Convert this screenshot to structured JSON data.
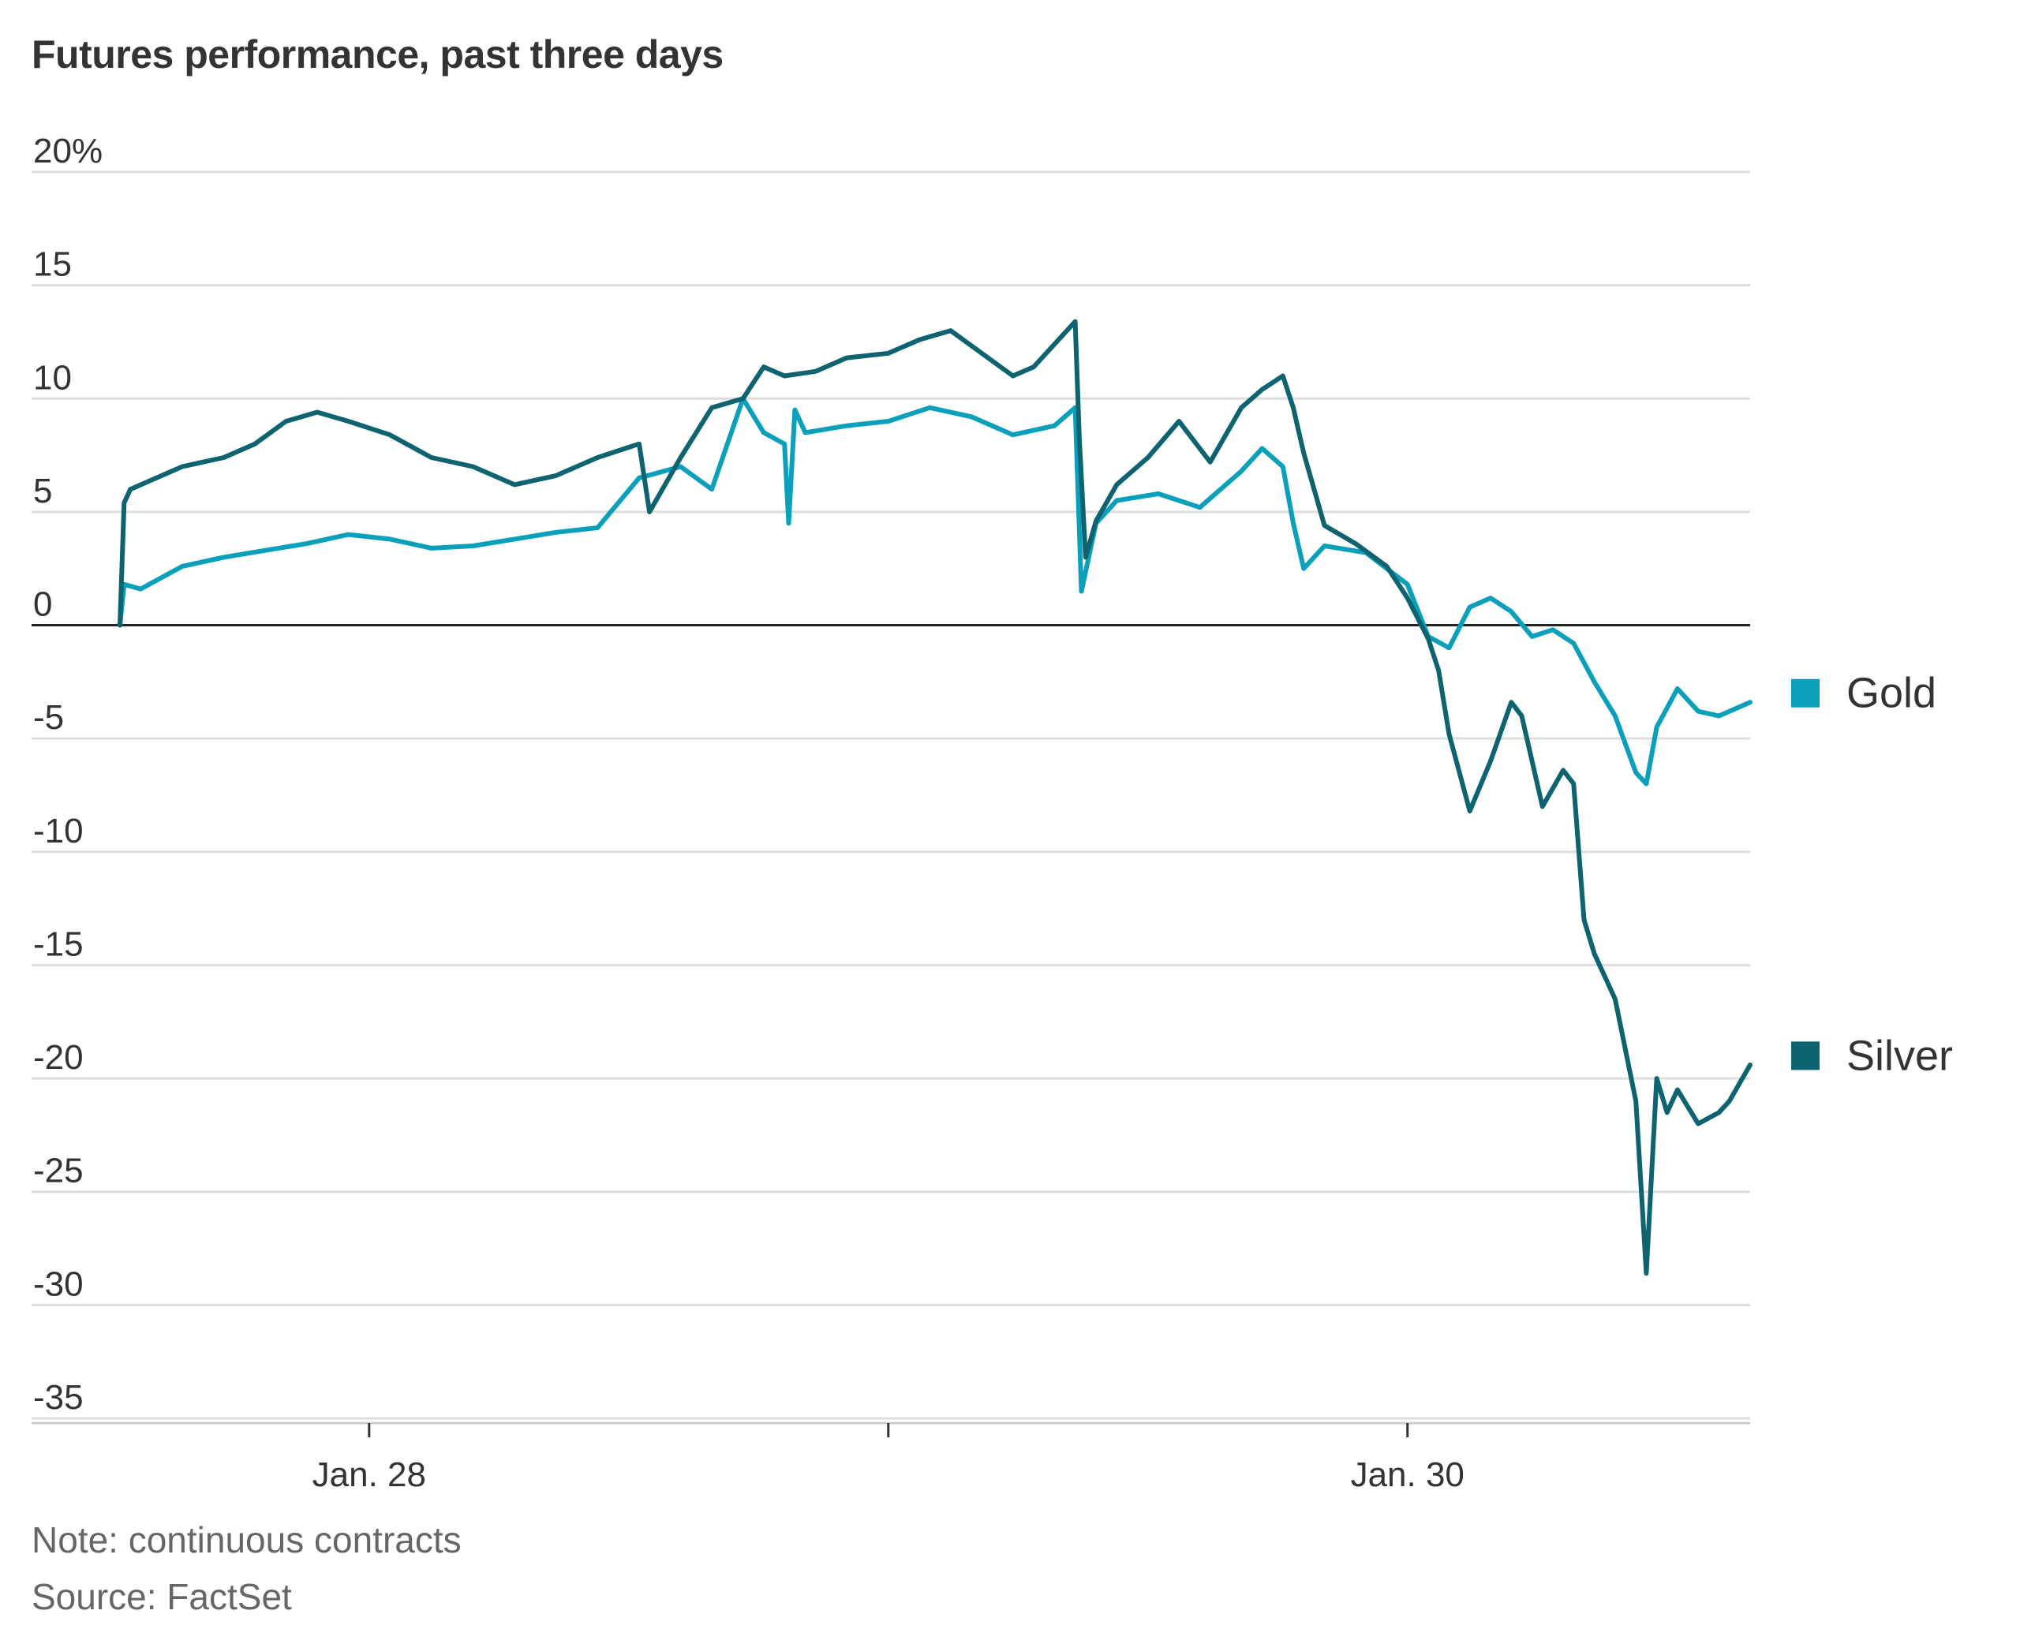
{
  "chart_data": {
    "type": "line",
    "title": "Futures performance, past three days",
    "ylabel": "",
    "xlabel": "",
    "ylim": [
      -35,
      20
    ],
    "y_ticks": [
      "20%",
      "15",
      "10",
      "5",
      "0",
      "-5",
      "-10",
      "-15",
      "-20",
      "-25",
      "-30",
      "-35"
    ],
    "y_tick_values": [
      20,
      15,
      10,
      5,
      0,
      -5,
      -10,
      -15,
      -20,
      -25,
      -30,
      -35
    ],
    "x_ticks": [
      "Jan. 28",
      "",
      "Jan. 30"
    ],
    "x_tick_positions": [
      1.2,
      3.7,
      6.2
    ],
    "xlim": [
      0,
      7.85
    ],
    "series": [
      {
        "name": "Gold",
        "color": "#0aa0bc",
        "x": [
          0,
          0.02,
          0.1,
          0.3,
          0.5,
          0.7,
          0.9,
          1.1,
          1.3,
          1.5,
          1.7,
          1.9,
          2.1,
          2.3,
          2.5,
          2.7,
          2.85,
          3.0,
          3.1,
          3.2,
          3.22,
          3.25,
          3.3,
          3.5,
          3.7,
          3.9,
          4.1,
          4.3,
          4.5,
          4.6,
          4.63,
          4.7,
          4.8,
          5.0,
          5.2,
          5.4,
          5.5,
          5.6,
          5.65,
          5.7,
          5.8,
          6.0,
          6.1,
          6.2,
          6.3,
          6.4,
          6.5,
          6.6,
          6.7,
          6.8,
          6.9,
          7.0,
          7.1,
          7.2,
          7.3,
          7.35,
          7.4,
          7.5,
          7.6,
          7.7,
          7.8,
          7.85
        ],
        "values": [
          0,
          1.8,
          1.6,
          2.6,
          3.0,
          3.3,
          3.6,
          4.0,
          3.8,
          3.4,
          3.5,
          3.8,
          4.1,
          4.3,
          6.5,
          7.0,
          6.0,
          10.0,
          8.5,
          8.0,
          4.5,
          9.5,
          8.5,
          8.8,
          9.0,
          9.6,
          9.2,
          8.4,
          8.8,
          9.6,
          1.5,
          4.5,
          5.5,
          5.8,
          5.2,
          6.8,
          7.8,
          7.0,
          4.5,
          2.5,
          3.5,
          3.2,
          2.5,
          1.8,
          -0.5,
          -1.0,
          0.8,
          1.2,
          0.6,
          -0.5,
          -0.2,
          -0.8,
          -2.5,
          -4.0,
          -6.5,
          -7.0,
          -4.5,
          -2.8,
          -3.8,
          -4.0,
          -3.6,
          -3.4
        ]
      },
      {
        "name": "Silver",
        "color": "#0d6370",
        "x": [
          0,
          0.02,
          0.05,
          0.15,
          0.3,
          0.5,
          0.65,
          0.8,
          0.95,
          1.1,
          1.3,
          1.5,
          1.7,
          1.9,
          2.1,
          2.3,
          2.5,
          2.55,
          2.7,
          2.85,
          3.0,
          3.1,
          3.2,
          3.35,
          3.5,
          3.7,
          3.85,
          4.0,
          4.15,
          4.3,
          4.4,
          4.6,
          4.62,
          4.65,
          4.7,
          4.8,
          4.95,
          5.1,
          5.25,
          5.4,
          5.5,
          5.6,
          5.65,
          5.7,
          5.8,
          5.95,
          6.1,
          6.2,
          6.3,
          6.35,
          6.4,
          6.5,
          6.6,
          6.7,
          6.75,
          6.85,
          6.95,
          7.0,
          7.05,
          7.1,
          7.2,
          7.3,
          7.35,
          7.4,
          7.45,
          7.5,
          7.6,
          7.7,
          7.75,
          7.85
        ],
        "values": [
          0,
          5.4,
          6.0,
          6.4,
          7.0,
          7.4,
          8.0,
          9.0,
          9.4,
          9.0,
          8.4,
          7.4,
          7.0,
          6.2,
          6.6,
          7.4,
          8.0,
          5.0,
          7.4,
          9.6,
          10.0,
          11.4,
          11.0,
          11.2,
          11.8,
          12.0,
          12.6,
          13.0,
          12.0,
          11.0,
          11.4,
          13.4,
          8.2,
          3.0,
          4.6,
          6.2,
          7.4,
          9.0,
          7.2,
          9.6,
          10.4,
          11.0,
          9.6,
          7.6,
          4.4,
          3.6,
          2.6,
          1.2,
          -0.6,
          -2.0,
          -4.8,
          -8.2,
          -6.0,
          -3.4,
          -4.0,
          -8.0,
          -6.4,
          -7.0,
          -13.0,
          -14.5,
          -16.5,
          -21.0,
          -28.6,
          -20.0,
          -21.5,
          -20.5,
          -22.0,
          -21.5,
          -21.0,
          -19.4
        ]
      }
    ],
    "legend": [
      {
        "label": "Gold",
        "color": "#0aa0bc"
      },
      {
        "label": "Silver",
        "color": "#0d6370"
      }
    ],
    "legend_placement": "right",
    "grid": true,
    "zero_line": true
  },
  "footnotes": {
    "note": "Note: continuous contracts",
    "source": "Source: FactSet"
  }
}
